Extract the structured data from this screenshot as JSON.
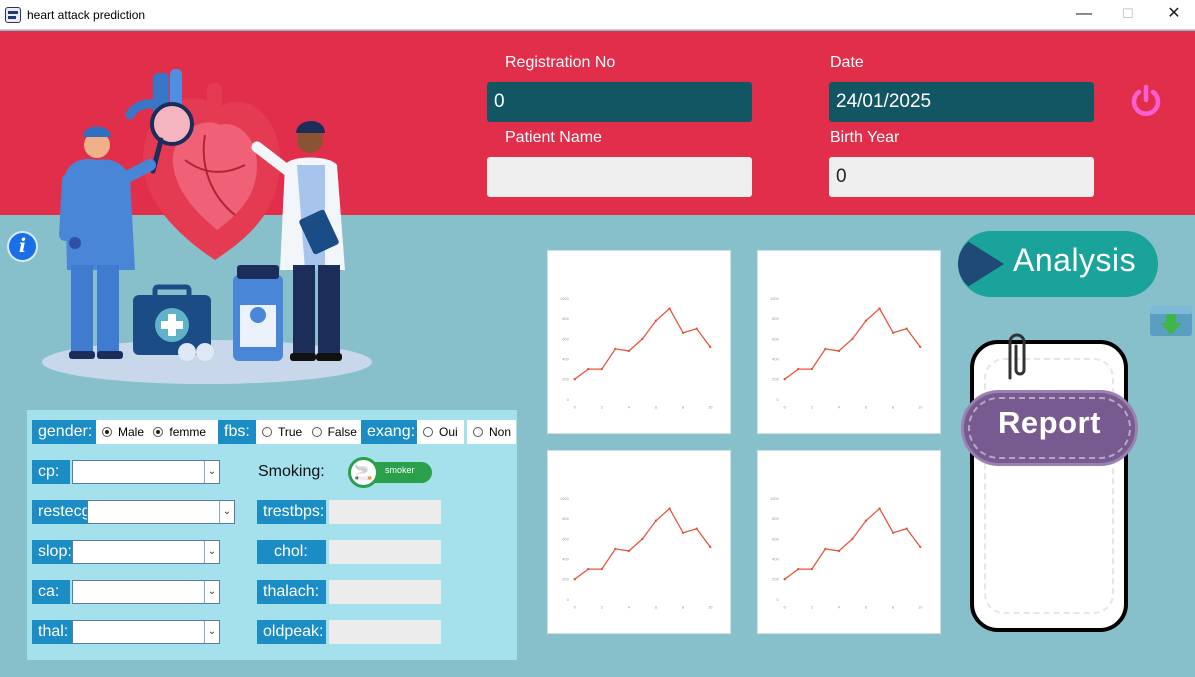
{
  "window": {
    "title": "heart attack prediction",
    "min": "—",
    "max": "☐",
    "close": "✕"
  },
  "header": {
    "registration_label": "Registration No",
    "registration_value": "0",
    "date_label": "Date",
    "date_value": "24/01/2025",
    "patient_name_label": "Patient Name",
    "patient_name_value": "",
    "birth_year_label": "Birth Year",
    "birth_year_value": "0"
  },
  "info_icon": "i",
  "form": {
    "gender_label": "gender:",
    "gender_options": [
      "Male",
      "femme"
    ],
    "fbs_label": "fbs:",
    "fbs_options": [
      "True",
      "False"
    ],
    "exang_label": "exang:",
    "exang_options": [
      "Oui",
      "Non"
    ],
    "cp_label": "cp:",
    "restecg_label": "restecg:",
    "slop_label": "slop:",
    "ca_label": "ca:",
    "thal_label": "thal:",
    "smoking_label": "Smoking:",
    "smoker_toggle": "smoker",
    "trestbps_label": "trestbps:",
    "chol_label": "chol:",
    "thalach_label": "thalach:",
    "oldpeak_label": "oldpeak:"
  },
  "buttons": {
    "analysis": "Analysis",
    "report": "Report"
  },
  "chart_data": [
    {
      "type": "line",
      "x": [
        0,
        1,
        2,
        3,
        4,
        5,
        6,
        7,
        8,
        9,
        10
      ],
      "values": [
        200,
        300,
        300,
        500,
        480,
        600,
        780,
        900,
        660,
        700,
        520
      ],
      "ylim": [
        0,
        1000
      ],
      "yticks": [
        "1000",
        "800",
        "600",
        "400",
        "200",
        "0"
      ],
      "xticks": [
        "0",
        "2",
        "4",
        "6",
        "8",
        "10"
      ],
      "color": "#e5533d"
    },
    {
      "type": "line",
      "x": [
        0,
        1,
        2,
        3,
        4,
        5,
        6,
        7,
        8,
        9,
        10
      ],
      "values": [
        200,
        300,
        300,
        500,
        480,
        600,
        780,
        900,
        660,
        700,
        520
      ],
      "ylim": [
        0,
        1000
      ],
      "yticks": [
        "1000",
        "800",
        "600",
        "400",
        "200",
        "0"
      ],
      "xticks": [
        "0",
        "2",
        "4",
        "6",
        "8",
        "10"
      ],
      "color": "#e5533d"
    },
    {
      "type": "line",
      "x": [
        0,
        1,
        2,
        3,
        4,
        5,
        6,
        7,
        8,
        9,
        10
      ],
      "values": [
        200,
        300,
        300,
        500,
        480,
        600,
        780,
        900,
        660,
        700,
        520
      ],
      "ylim": [
        0,
        1000
      ],
      "yticks": [
        "1000",
        "800",
        "600",
        "400",
        "200",
        "0"
      ],
      "xticks": [
        "0",
        "2",
        "4",
        "6",
        "8",
        "10"
      ],
      "color": "#e5533d"
    },
    {
      "type": "line",
      "x": [
        0,
        1,
        2,
        3,
        4,
        5,
        6,
        7,
        8,
        9,
        10
      ],
      "values": [
        200,
        300,
        300,
        500,
        480,
        600,
        780,
        900,
        660,
        700,
        520
      ],
      "ylim": [
        0,
        1000
      ],
      "yticks": [
        "1000",
        "800",
        "600",
        "400",
        "200",
        "0"
      ],
      "xticks": [
        "0",
        "2",
        "4",
        "6",
        "8",
        "10"
      ],
      "color": "#e5533d"
    }
  ]
}
